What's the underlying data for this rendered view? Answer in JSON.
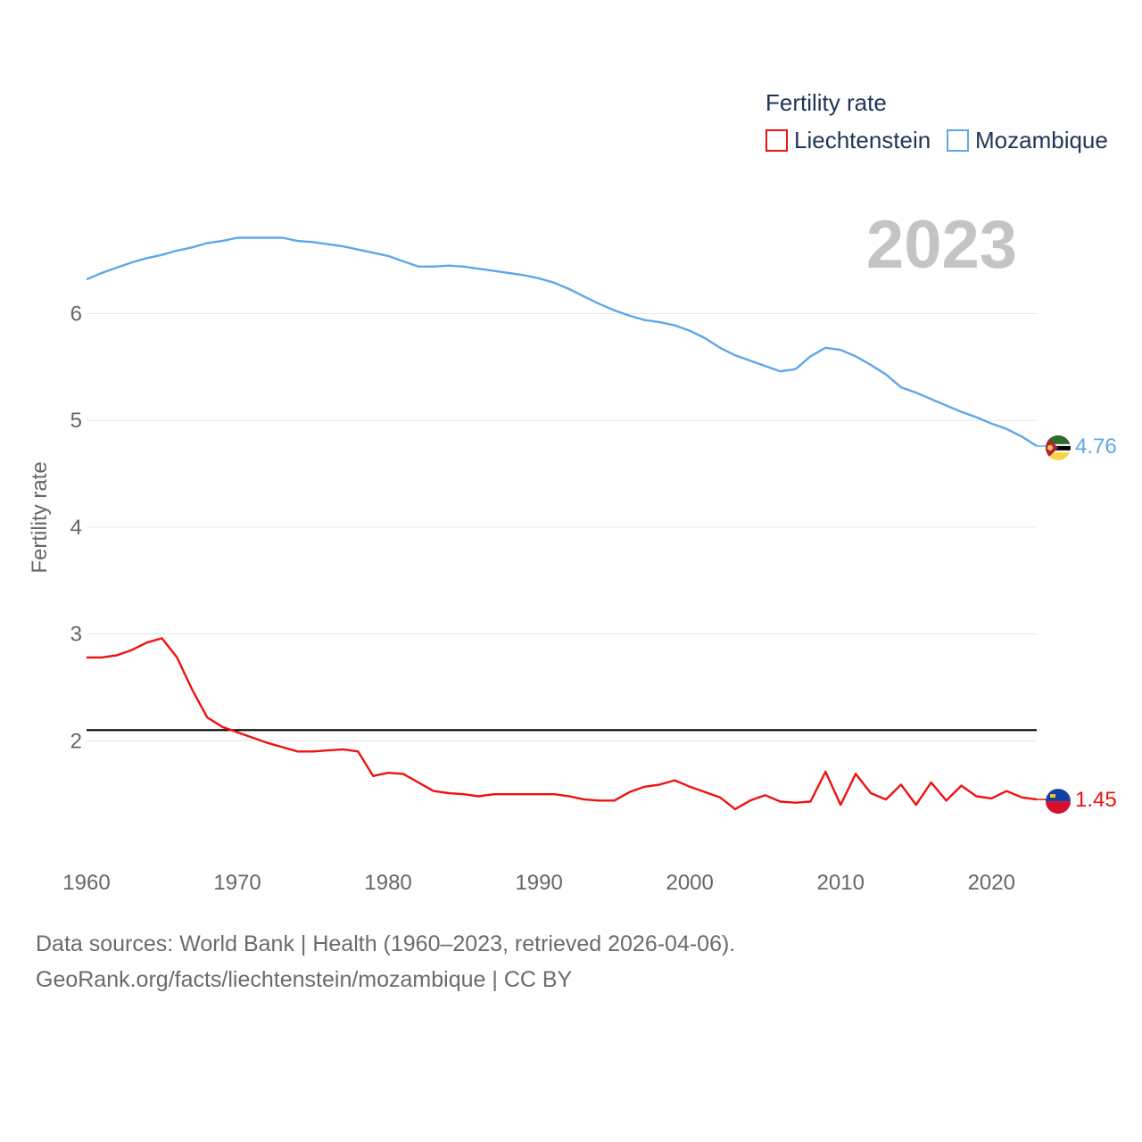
{
  "chart_data": {
    "type": "line",
    "legend_title": "Fertility rate",
    "ylabel": "Fertility rate",
    "xlabel": "",
    "year_label": "2023",
    "xlim": [
      1960,
      2023
    ],
    "ylim": [
      1.0,
      7.6
    ],
    "x_ticks": [
      1960,
      1970,
      1980,
      1990,
      2000,
      2010,
      2020
    ],
    "y_ticks": [
      2,
      3,
      4,
      5,
      6
    ],
    "reference_line": 2.1,
    "x": [
      1960,
      1961,
      1962,
      1963,
      1964,
      1965,
      1966,
      1967,
      1968,
      1969,
      1970,
      1971,
      1972,
      1973,
      1974,
      1975,
      1976,
      1977,
      1978,
      1979,
      1980,
      1981,
      1982,
      1983,
      1984,
      1985,
      1986,
      1987,
      1988,
      1989,
      1990,
      1991,
      1992,
      1993,
      1994,
      1995,
      1996,
      1997,
      1998,
      1999,
      2000,
      2001,
      2002,
      2003,
      2004,
      2005,
      2006,
      2007,
      2008,
      2009,
      2010,
      2011,
      2012,
      2013,
      2014,
      2015,
      2016,
      2017,
      2018,
      2019,
      2020,
      2021,
      2022,
      2023
    ],
    "series": [
      {
        "name": "Liechtenstein",
        "color": "#ee1111",
        "end_label": "1.45",
        "values": [
          2.78,
          2.78,
          2.8,
          2.85,
          2.92,
          2.96,
          2.78,
          2.48,
          2.22,
          2.13,
          2.08,
          2.03,
          1.98,
          1.94,
          1.9,
          1.9,
          1.91,
          1.92,
          1.9,
          1.67,
          1.7,
          1.69,
          1.61,
          1.53,
          1.51,
          1.5,
          1.48,
          1.5,
          1.5,
          1.5,
          1.5,
          1.5,
          1.48,
          1.45,
          1.44,
          1.44,
          1.52,
          1.57,
          1.59,
          1.63,
          1.57,
          1.52,
          1.47,
          1.36,
          1.44,
          1.49,
          1.43,
          1.42,
          1.43,
          1.71,
          1.4,
          1.69,
          1.51,
          1.45,
          1.59,
          1.4,
          1.61,
          1.44,
          1.58,
          1.48,
          1.46,
          1.53,
          1.47,
          1.45
        ]
      },
      {
        "name": "Mozambique",
        "color": "#5da7e8",
        "end_label": "4.76",
        "values": [
          6.32,
          6.38,
          6.43,
          6.48,
          6.52,
          6.55,
          6.59,
          6.62,
          6.66,
          6.68,
          6.71,
          6.71,
          6.71,
          6.71,
          6.68,
          6.67,
          6.65,
          6.63,
          6.6,
          6.57,
          6.54,
          6.49,
          6.44,
          6.44,
          6.45,
          6.44,
          6.42,
          6.4,
          6.38,
          6.36,
          6.33,
          6.29,
          6.23,
          6.16,
          6.09,
          6.03,
          5.98,
          5.94,
          5.92,
          5.89,
          5.84,
          5.77,
          5.68,
          5.61,
          5.56,
          5.51,
          5.46,
          5.48,
          5.6,
          5.68,
          5.66,
          5.6,
          5.52,
          5.43,
          5.31,
          5.26,
          5.2,
          5.14,
          5.08,
          5.03,
          4.97,
          4.92,
          4.85,
          4.76
        ]
      }
    ]
  },
  "source": {
    "line1": "Data sources: World Bank | Health (1960–2023, retrieved 2026-04-06).",
    "line2": "GeoRank.org/facts/liechtenstein/mozambique | CC BY"
  }
}
